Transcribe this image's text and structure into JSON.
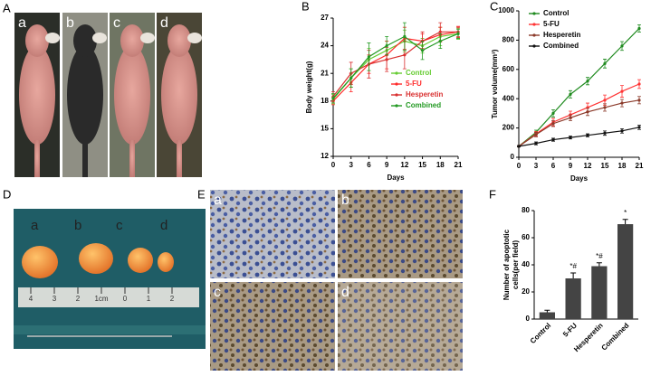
{
  "panels": {
    "A": {
      "letter": "A",
      "photo_labels": [
        "a",
        "b",
        "c",
        "d"
      ]
    },
    "B": {
      "letter": "B"
    },
    "C": {
      "letter": "C"
    },
    "D": {
      "letter": "D",
      "photo_labels": [
        "a",
        "b",
        "c",
        "d"
      ],
      "ruler_labels": [
        "4",
        "3",
        "2",
        "1cm",
        "0",
        "1",
        "2"
      ]
    },
    "E": {
      "letter": "E",
      "photo_labels": [
        "a",
        "b",
        "c",
        "d"
      ]
    },
    "F": {
      "letter": "F"
    }
  },
  "chart_data": [
    {
      "type": "line",
      "xlabel": "Days",
      "ylabel": "Body weight(g)",
      "x": [
        0,
        3,
        6,
        9,
        12,
        15,
        18,
        21
      ],
      "xlim": [
        0,
        21
      ],
      "xticks": [
        0,
        3,
        6,
        9,
        12,
        15,
        18,
        21
      ],
      "ylim": [
        12,
        27
      ],
      "yticks": [
        12,
        15,
        18,
        21,
        24,
        27
      ],
      "series": [
        {
          "name": "Control",
          "color": "#66cc33",
          "values": [
            18.2,
            20.5,
            22.5,
            23.5,
            24.5,
            24.0,
            25.0,
            25.3
          ],
          "errors": [
            0.5,
            1.0,
            1.2,
            1.0,
            1.2,
            0.8,
            1.0,
            0.6
          ]
        },
        {
          "name": "5-FU",
          "color": "#ff2a2a",
          "values": [
            18.0,
            20.0,
            22.0,
            23.0,
            24.8,
            24.5,
            25.2,
            25.5
          ],
          "errors": [
            0.4,
            1.0,
            1.0,
            1.5,
            1.2,
            0.8,
            0.8,
            0.6
          ]
        },
        {
          "name": "Hesperetin",
          "color": "#d93030",
          "values": [
            18.5,
            21.0,
            22.0,
            22.5,
            23.0,
            24.5,
            25.5,
            25.5
          ],
          "errors": [
            0.5,
            1.2,
            1.5,
            1.3,
            1.5,
            1.0,
            1.0,
            0.5
          ]
        },
        {
          "name": "Combined",
          "color": "#229922",
          "values": [
            18.3,
            20.5,
            22.8,
            24.0,
            25.0,
            23.5,
            24.5,
            25.3
          ],
          "errors": [
            0.5,
            1.0,
            1.5,
            1.0,
            1.5,
            1.0,
            0.8,
            0.5
          ]
        }
      ]
    },
    {
      "type": "line",
      "xlabel": "Days",
      "ylabel": "Tumor volume(mm³)",
      "x": [
        0,
        3,
        6,
        9,
        12,
        15,
        18,
        21
      ],
      "xlim": [
        0,
        21
      ],
      "xticks": [
        0,
        3,
        6,
        9,
        12,
        15,
        18,
        21
      ],
      "ylim": [
        0,
        1000
      ],
      "yticks": [
        0,
        200,
        400,
        600,
        800,
        1000
      ],
      "series": [
        {
          "name": "Control",
          "color": "#1e8a1e",
          "values": [
            75,
            170,
            300,
            430,
            520,
            640,
            760,
            880
          ],
          "errors": [
            5,
            15,
            25,
            25,
            25,
            30,
            30,
            25
          ]
        },
        {
          "name": "5-FU",
          "color": "#ff3333",
          "values": [
            75,
            160,
            240,
            290,
            340,
            390,
            450,
            500
          ],
          "errors": [
            5,
            15,
            25,
            25,
            30,
            35,
            40,
            30
          ]
        },
        {
          "name": "Hesperetin",
          "color": "#8b3a2a",
          "values": [
            75,
            155,
            230,
            270,
            310,
            340,
            370,
            390
          ],
          "errors": [
            5,
            15,
            20,
            20,
            25,
            25,
            25,
            25
          ]
        },
        {
          "name": "Combined",
          "color": "#111111",
          "values": [
            75,
            95,
            120,
            135,
            150,
            165,
            180,
            205
          ],
          "errors": [
            5,
            10,
            10,
            10,
            10,
            15,
            15,
            15
          ]
        }
      ]
    },
    {
      "type": "bar",
      "ylabel": [
        "Number of apoptotic",
        "cells(per field)"
      ],
      "categories": [
        "Control",
        "5-FU",
        "Hesperetin",
        "Combined"
      ],
      "values": [
        5,
        30,
        39,
        70
      ],
      "errors": [
        1.5,
        4,
        2.5,
        3.5
      ],
      "annotations": [
        null,
        "*#",
        "*#",
        "*"
      ],
      "color": "#444444",
      "ylim": [
        0,
        80
      ],
      "yticks": [
        0,
        20,
        40,
        60,
        80
      ]
    }
  ]
}
